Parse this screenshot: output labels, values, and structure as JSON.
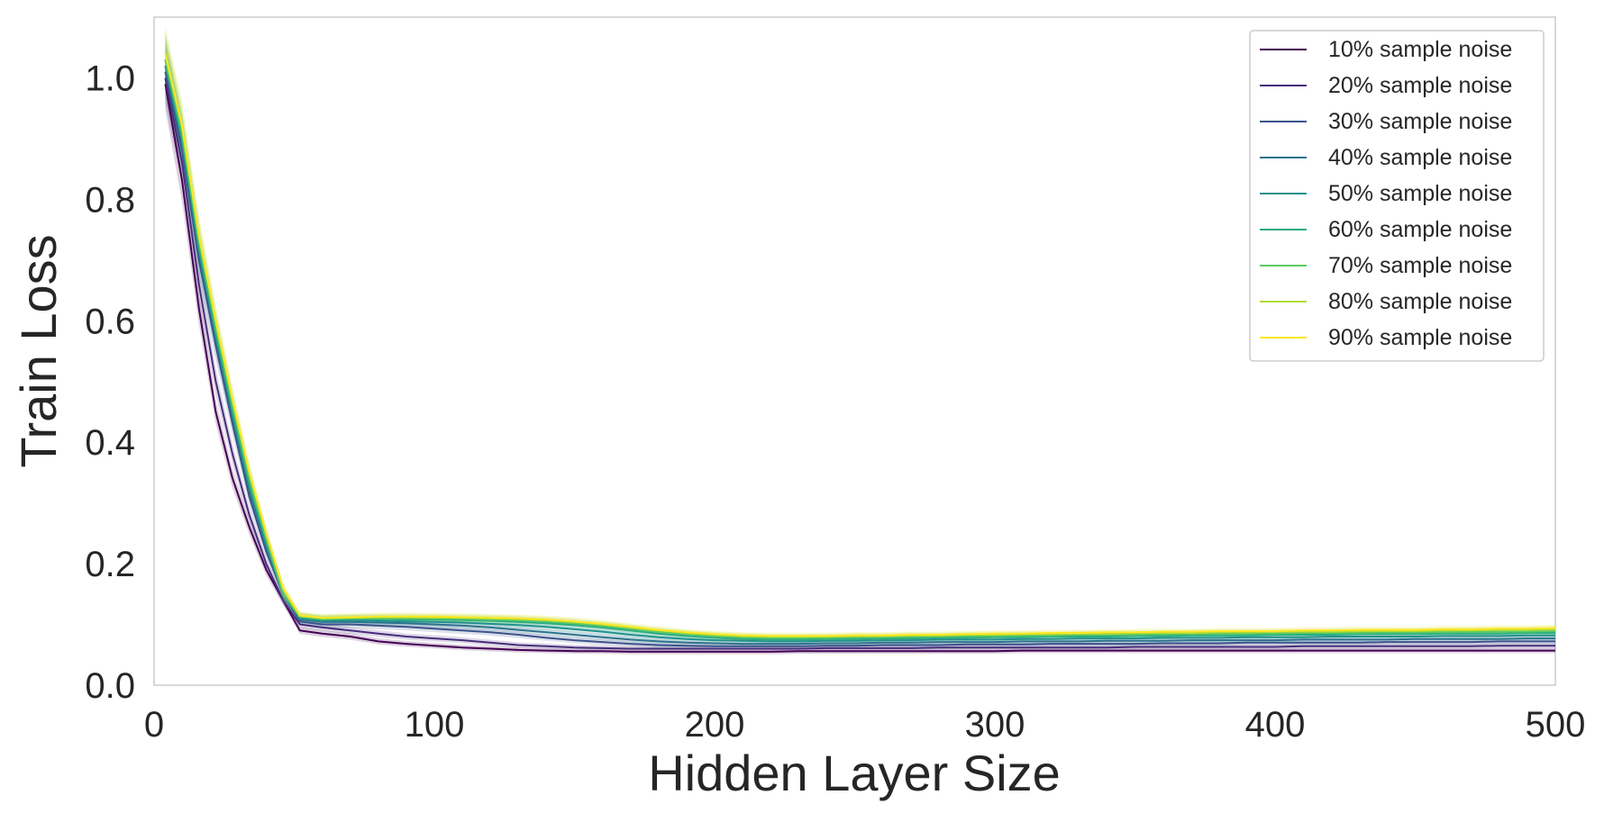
{
  "chart_data": {
    "type": "line",
    "title": "",
    "xlabel": "Hidden Layer Size",
    "ylabel": "Train Loss",
    "xlim": [
      0,
      500
    ],
    "ylim": [
      0,
      1.1
    ],
    "xticks": [
      0,
      100,
      200,
      300,
      400,
      500
    ],
    "xtick_labels": [
      "0",
      "100",
      "200",
      "300",
      "400",
      "500"
    ],
    "yticks": [
      0,
      0.2,
      0.4,
      0.6,
      0.8,
      1.0
    ],
    "ytick_labels": [
      "0.0",
      "0.2",
      "0.4",
      "0.6",
      "0.8",
      "1.0"
    ],
    "grid": false,
    "legend_position": "top-right",
    "confidence_band": true,
    "x": [
      4,
      10,
      16,
      22,
      28,
      34,
      40,
      46,
      52,
      60,
      70,
      80,
      90,
      100,
      110,
      120,
      130,
      140,
      150,
      160,
      170,
      180,
      190,
      200,
      210,
      220,
      230,
      240,
      250,
      260,
      270,
      280,
      290,
      300,
      310,
      320,
      330,
      340,
      350,
      360,
      370,
      380,
      390,
      400,
      410,
      420,
      430,
      440,
      450,
      460,
      470,
      480,
      490,
      500
    ],
    "series": [
      {
        "name": "10% sample noise",
        "color": "#440154",
        "values": [
          0.99,
          0.83,
          0.62,
          0.45,
          0.34,
          0.26,
          0.19,
          0.14,
          0.09,
          0.085,
          0.08,
          0.072,
          0.068,
          0.065,
          0.062,
          0.06,
          0.058,
          0.057,
          0.056,
          0.056,
          0.055,
          0.055,
          0.055,
          0.055,
          0.055,
          0.055,
          0.056,
          0.056,
          0.056,
          0.056,
          0.056,
          0.056,
          0.056,
          0.056,
          0.057,
          0.057,
          0.057,
          0.057,
          0.057,
          0.057,
          0.057,
          0.057,
          0.057,
          0.057,
          0.057,
          0.057,
          0.057,
          0.057,
          0.057,
          0.057,
          0.057,
          0.057,
          0.057,
          0.057
        ]
      },
      {
        "name": "20% sample noise",
        "color": "#472d7b",
        "values": [
          1.0,
          0.86,
          0.66,
          0.5,
          0.38,
          0.28,
          0.2,
          0.14,
          0.1,
          0.095,
          0.09,
          0.085,
          0.08,
          0.077,
          0.074,
          0.07,
          0.066,
          0.064,
          0.062,
          0.061,
          0.06,
          0.06,
          0.06,
          0.06,
          0.06,
          0.06,
          0.06,
          0.061,
          0.061,
          0.061,
          0.061,
          0.062,
          0.062,
          0.062,
          0.062,
          0.062,
          0.062,
          0.062,
          0.063,
          0.063,
          0.063,
          0.063,
          0.063,
          0.063,
          0.064,
          0.064,
          0.064,
          0.064,
          0.064,
          0.064,
          0.064,
          0.065,
          0.065,
          0.065
        ]
      },
      {
        "name": "30% sample noise",
        "color": "#3b528b",
        "values": [
          1.01,
          0.88,
          0.7,
          0.56,
          0.43,
          0.31,
          0.22,
          0.15,
          0.105,
          0.1,
          0.1,
          0.098,
          0.096,
          0.093,
          0.09,
          0.087,
          0.083,
          0.078,
          0.074,
          0.071,
          0.068,
          0.066,
          0.065,
          0.064,
          0.064,
          0.064,
          0.064,
          0.065,
          0.065,
          0.066,
          0.066,
          0.066,
          0.067,
          0.067,
          0.067,
          0.068,
          0.068,
          0.068,
          0.068,
          0.069,
          0.069,
          0.069,
          0.07,
          0.07,
          0.07,
          0.07,
          0.07,
          0.071,
          0.071,
          0.071,
          0.071,
          0.072,
          0.072,
          0.072
        ]
      },
      {
        "name": "40% sample noise",
        "color": "#2c728e",
        "values": [
          1.02,
          0.89,
          0.71,
          0.57,
          0.44,
          0.32,
          0.23,
          0.15,
          0.108,
          0.104,
          0.104,
          0.103,
          0.102,
          0.1,
          0.098,
          0.095,
          0.091,
          0.087,
          0.083,
          0.079,
          0.075,
          0.072,
          0.07,
          0.069,
          0.068,
          0.068,
          0.068,
          0.069,
          0.069,
          0.07,
          0.07,
          0.071,
          0.071,
          0.071,
          0.072,
          0.072,
          0.072,
          0.073,
          0.073,
          0.073,
          0.074,
          0.074,
          0.074,
          0.074,
          0.075,
          0.075,
          0.075,
          0.075,
          0.076,
          0.076,
          0.076,
          0.076,
          0.077,
          0.077
        ]
      },
      {
        "name": "50% sample noise",
        "color": "#21918c",
        "values": [
          1.02,
          0.9,
          0.72,
          0.58,
          0.45,
          0.33,
          0.23,
          0.15,
          0.11,
          0.106,
          0.107,
          0.106,
          0.105,
          0.104,
          0.103,
          0.101,
          0.099,
          0.096,
          0.092,
          0.088,
          0.083,
          0.079,
          0.076,
          0.074,
          0.073,
          0.072,
          0.072,
          0.073,
          0.073,
          0.074,
          0.074,
          0.075,
          0.075,
          0.075,
          0.076,
          0.076,
          0.077,
          0.077,
          0.077,
          0.078,
          0.078,
          0.078,
          0.079,
          0.079,
          0.079,
          0.08,
          0.08,
          0.08,
          0.08,
          0.081,
          0.081,
          0.081,
          0.082,
          0.082
        ]
      },
      {
        "name": "60% sample noise",
        "color": "#28ae80",
        "values": [
          1.03,
          0.9,
          0.72,
          0.58,
          0.45,
          0.33,
          0.24,
          0.15,
          0.112,
          0.108,
          0.109,
          0.109,
          0.108,
          0.108,
          0.107,
          0.106,
          0.104,
          0.102,
          0.099,
          0.095,
          0.09,
          0.085,
          0.081,
          0.078,
          0.076,
          0.075,
          0.075,
          0.076,
          0.076,
          0.077,
          0.077,
          0.078,
          0.078,
          0.079,
          0.079,
          0.08,
          0.08,
          0.08,
          0.081,
          0.081,
          0.082,
          0.082,
          0.082,
          0.083,
          0.083,
          0.083,
          0.084,
          0.084,
          0.084,
          0.085,
          0.085,
          0.085,
          0.086,
          0.086
        ]
      },
      {
        "name": "70% sample noise",
        "color": "#5ec962",
        "values": [
          1.03,
          0.91,
          0.73,
          0.59,
          0.46,
          0.34,
          0.24,
          0.15,
          0.113,
          0.109,
          0.11,
          0.11,
          0.11,
          0.11,
          0.109,
          0.108,
          0.107,
          0.105,
          0.102,
          0.098,
          0.093,
          0.088,
          0.084,
          0.081,
          0.079,
          0.078,
          0.078,
          0.078,
          0.079,
          0.079,
          0.08,
          0.08,
          0.081,
          0.081,
          0.082,
          0.082,
          0.083,
          0.083,
          0.083,
          0.084,
          0.084,
          0.085,
          0.085,
          0.085,
          0.086,
          0.086,
          0.086,
          0.087,
          0.087,
          0.087,
          0.088,
          0.088,
          0.088,
          0.089
        ]
      },
      {
        "name": "80% sample noise",
        "color": "#addc30",
        "values": [
          1.04,
          0.92,
          0.74,
          0.6,
          0.47,
          0.35,
          0.25,
          0.16,
          0.114,
          0.11,
          0.111,
          0.112,
          0.112,
          0.111,
          0.111,
          0.11,
          0.109,
          0.107,
          0.104,
          0.1,
          0.095,
          0.09,
          0.086,
          0.083,
          0.081,
          0.08,
          0.08,
          0.08,
          0.081,
          0.081,
          0.082,
          0.082,
          0.083,
          0.083,
          0.084,
          0.084,
          0.085,
          0.085,
          0.086,
          0.086,
          0.086,
          0.087,
          0.087,
          0.088,
          0.088,
          0.088,
          0.089,
          0.089,
          0.089,
          0.09,
          0.09,
          0.091,
          0.091,
          0.092
        ]
      },
      {
        "name": "90% sample noise",
        "color": "#fde725",
        "values": [
          1.04,
          0.92,
          0.74,
          0.6,
          0.47,
          0.35,
          0.25,
          0.16,
          0.115,
          0.111,
          0.112,
          0.113,
          0.113,
          0.113,
          0.112,
          0.111,
          0.11,
          0.108,
          0.105,
          0.101,
          0.096,
          0.091,
          0.087,
          0.084,
          0.082,
          0.081,
          0.081,
          0.081,
          0.082,
          0.082,
          0.083,
          0.083,
          0.084,
          0.085,
          0.085,
          0.086,
          0.086,
          0.087,
          0.087,
          0.088,
          0.088,
          0.089,
          0.089,
          0.089,
          0.09,
          0.09,
          0.091,
          0.091,
          0.091,
          0.092,
          0.092,
          0.093,
          0.093,
          0.094
        ]
      }
    ]
  }
}
